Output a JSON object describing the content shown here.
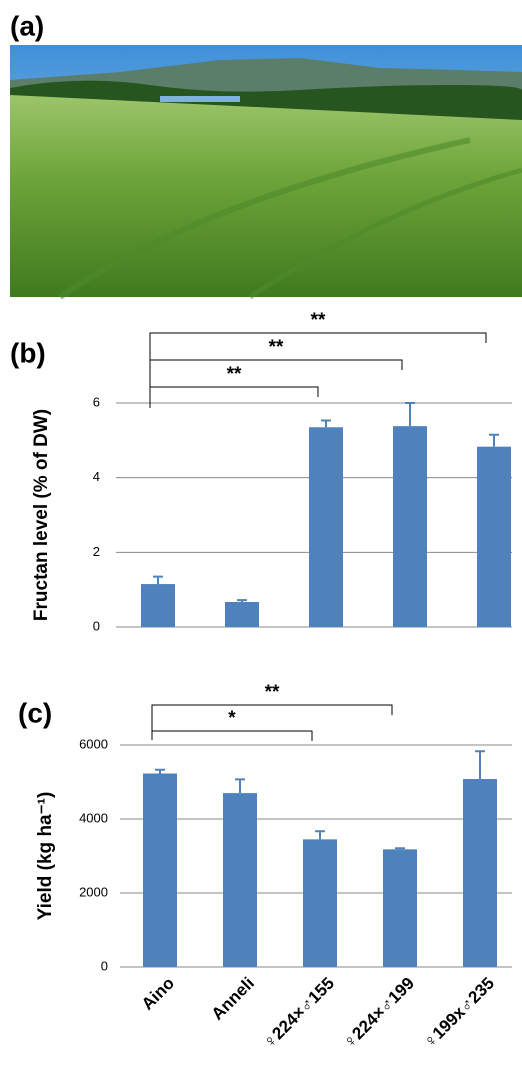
{
  "panel_labels": [
    "(a)",
    "(b)",
    "(c)"
  ],
  "chart_data": [
    {
      "type": "bar",
      "ylabel": "Fructan level (% of DW)",
      "categories": [
        null,
        null,
        null,
        null,
        null
      ],
      "values": [
        1.15,
        0.67,
        5.35,
        5.38,
        4.83
      ],
      "errors": [
        0.2,
        0.05,
        0.18,
        0.62,
        0.32
      ],
      "color": "#4f81bd",
      "ylim": [
        0,
        6
      ],
      "yticks": [
        0,
        2,
        4,
        6
      ],
      "grid": true,
      "annotations": [
        {
          "from": 0,
          "to": 2,
          "text": "**"
        },
        {
          "from": 0,
          "to": 3,
          "text": "**"
        },
        {
          "from": 0,
          "to": 4,
          "text": "**"
        }
      ]
    },
    {
      "type": "bar",
      "ylabel": "Yield (kg ha⁻¹)",
      "categories": [
        "Aino",
        "Anneli",
        "♀224×♂155",
        "♀224×♂199",
        "♀199x♂235"
      ],
      "values": [
        5230,
        4700,
        3450,
        3180,
        5080
      ],
      "errors": [
        100,
        370,
        220,
        30,
        750
      ],
      "color": "#4f81bd",
      "ylim": [
        0,
        6000
      ],
      "yticks": [
        0,
        2000,
        4000,
        6000
      ],
      "grid": true,
      "annotations": [
        {
          "from": 0,
          "to": 2,
          "text": "*"
        },
        {
          "from": 0,
          "to": 3,
          "text": "**"
        }
      ]
    }
  ]
}
